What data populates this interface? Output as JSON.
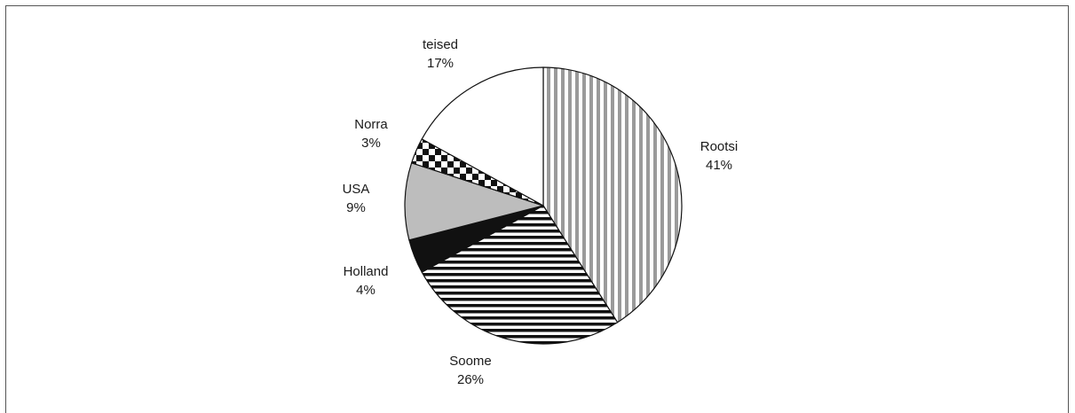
{
  "chart_data": {
    "type": "pie",
    "start_angle_deg": 0,
    "direction": "clockwise",
    "slices": [
      {
        "label": "Rootsi",
        "value": 41,
        "value_label": "41%",
        "pattern": "vertical-stripes",
        "color": "#9a9a9a"
      },
      {
        "label": "Soome",
        "value": 26,
        "value_label": "26%",
        "pattern": "horizontal-stripes",
        "color": "#111111"
      },
      {
        "label": "Holland",
        "value": 4,
        "value_label": "4%",
        "pattern": "solid",
        "color": "#111111"
      },
      {
        "label": "USA",
        "value": 9,
        "value_label": "9%",
        "pattern": "solid",
        "color": "#bdbdbd"
      },
      {
        "label": "Norra",
        "value": 3,
        "value_label": "3%",
        "pattern": "checkerboard",
        "color": "#111111"
      },
      {
        "label": "teised",
        "value": 17,
        "value_label": "17%",
        "pattern": "solid",
        "color": "#ffffff"
      }
    ]
  }
}
